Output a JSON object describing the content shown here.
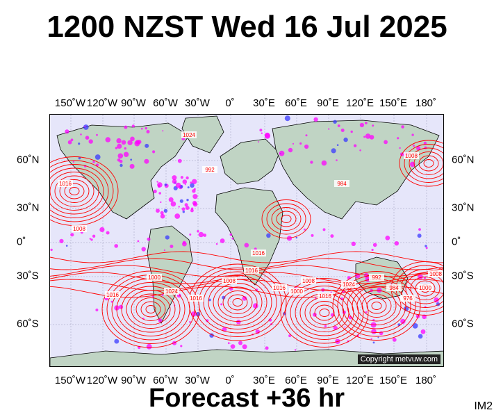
{
  "header": {
    "title": "1200 NZST Wed 16 Jul 2025"
  },
  "footer": {
    "forecast_label": "Forecast +36 hr",
    "product_code": "IM2"
  },
  "map": {
    "copyright": "Copyright metvuw.com",
    "longitude_ticks": [
      "150˚W",
      "120˚W",
      "90˚W",
      "60˚W",
      "30˚W",
      "0˚",
      "30˚E",
      "60˚E",
      "90˚E",
      "120˚E",
      "150˚E",
      "180˚"
    ],
    "latitude_ticks": [
      "60˚N",
      "30˚N",
      "0˚",
      "30˚S",
      "60˚S"
    ],
    "isobar_labels": [
      "1016",
      "1008",
      "1000",
      "1024",
      "1016",
      "1008",
      "1016",
      "1016",
      "1000",
      "1008",
      "1016",
      "1024",
      "992",
      "984",
      "976",
      "1000",
      "1008",
      "1016",
      "1024",
      "992",
      "984",
      "1008",
      "1016"
    ],
    "colors": {
      "ocean": "#e6e6fa",
      "land": "#c0d4c4",
      "isobar": "#ff0000",
      "rain_light": "#ff00ff",
      "rain_heavy": "#3a3aff"
    }
  }
}
